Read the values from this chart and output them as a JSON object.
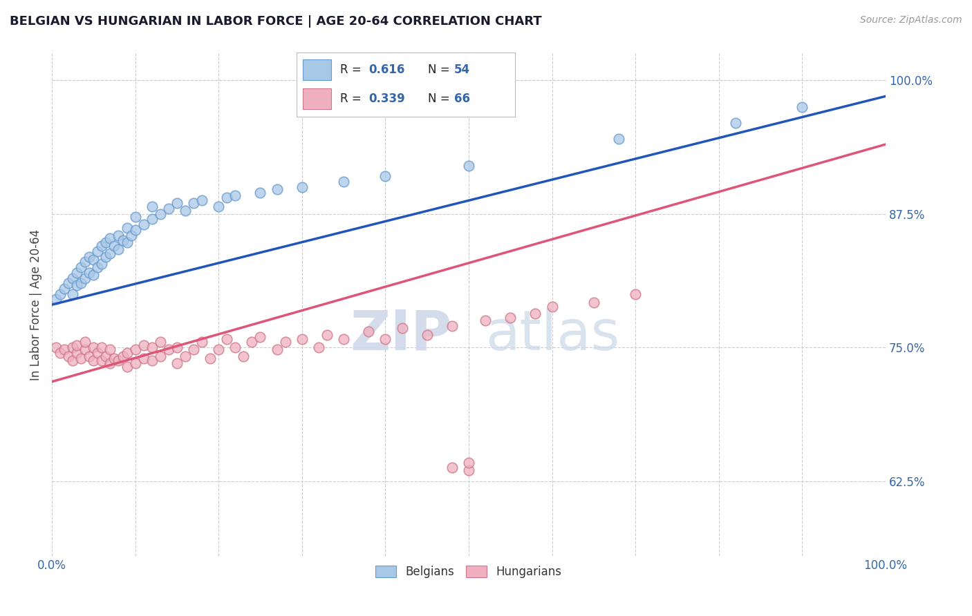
{
  "title": "BELGIAN VS HUNGARIAN IN LABOR FORCE | AGE 20-64 CORRELATION CHART",
  "source_text": "Source: ZipAtlas.com",
  "ylabel": "In Labor Force | Age 20-64",
  "xlim": [
    0.0,
    1.0
  ],
  "ylim": [
    0.555,
    1.025
  ],
  "yticks": [
    0.625,
    0.75,
    0.875,
    1.0
  ],
  "ytick_labels": [
    "62.5%",
    "75.0%",
    "87.5%",
    "100.0%"
  ],
  "belgian_color": "#a8c8e8",
  "hungarian_color": "#f0b0c0",
  "trend_blue": "#2255bb",
  "trend_pink": "#dd5577",
  "belgians_label": "Belgians",
  "hungarians_label": "Hungarians",
  "watermark_zip": "ZIP",
  "watermark_atlas": "atlas",
  "background_color": "#ffffff",
  "grid_color": "#cccccc",
  "title_color": "#1a1a2e",
  "belgian_x": [
    0.005,
    0.01,
    0.015,
    0.02,
    0.025,
    0.025,
    0.03,
    0.03,
    0.035,
    0.035,
    0.04,
    0.04,
    0.045,
    0.045,
    0.05,
    0.05,
    0.055,
    0.055,
    0.06,
    0.06,
    0.065,
    0.065,
    0.07,
    0.07,
    0.075,
    0.08,
    0.08,
    0.085,
    0.09,
    0.09,
    0.095,
    0.1,
    0.1,
    0.11,
    0.12,
    0.12,
    0.13,
    0.14,
    0.15,
    0.16,
    0.17,
    0.18,
    0.2,
    0.21,
    0.22,
    0.25,
    0.27,
    0.3,
    0.35,
    0.4,
    0.5,
    0.68,
    0.82,
    0.9
  ],
  "belgian_y": [
    0.795,
    0.8,
    0.805,
    0.81,
    0.8,
    0.815,
    0.808,
    0.82,
    0.81,
    0.825,
    0.815,
    0.83,
    0.82,
    0.835,
    0.818,
    0.832,
    0.825,
    0.84,
    0.828,
    0.845,
    0.835,
    0.848,
    0.838,
    0.852,
    0.845,
    0.842,
    0.855,
    0.85,
    0.848,
    0.862,
    0.855,
    0.86,
    0.872,
    0.865,
    0.87,
    0.882,
    0.875,
    0.88,
    0.885,
    0.878,
    0.885,
    0.888,
    0.882,
    0.89,
    0.892,
    0.895,
    0.898,
    0.9,
    0.905,
    0.91,
    0.92,
    0.945,
    0.96,
    0.975
  ],
  "hungarian_x": [
    0.005,
    0.01,
    0.015,
    0.02,
    0.025,
    0.025,
    0.03,
    0.03,
    0.035,
    0.04,
    0.04,
    0.045,
    0.05,
    0.05,
    0.055,
    0.06,
    0.06,
    0.065,
    0.07,
    0.07,
    0.075,
    0.08,
    0.085,
    0.09,
    0.09,
    0.1,
    0.1,
    0.11,
    0.11,
    0.12,
    0.12,
    0.13,
    0.13,
    0.14,
    0.15,
    0.15,
    0.16,
    0.17,
    0.18,
    0.19,
    0.2,
    0.21,
    0.22,
    0.23,
    0.24,
    0.25,
    0.27,
    0.28,
    0.3,
    0.32,
    0.33,
    0.35,
    0.38,
    0.4,
    0.42,
    0.45,
    0.48,
    0.5,
    0.52,
    0.55,
    0.58,
    0.6,
    0.65,
    0.7,
    0.48,
    0.5
  ],
  "hungarian_y": [
    0.75,
    0.745,
    0.748,
    0.742,
    0.75,
    0.738,
    0.745,
    0.752,
    0.74,
    0.748,
    0.755,
    0.742,
    0.75,
    0.738,
    0.745,
    0.738,
    0.75,
    0.742,
    0.735,
    0.748,
    0.74,
    0.738,
    0.742,
    0.732,
    0.745,
    0.735,
    0.748,
    0.74,
    0.752,
    0.738,
    0.75,
    0.742,
    0.755,
    0.748,
    0.735,
    0.75,
    0.742,
    0.748,
    0.755,
    0.74,
    0.748,
    0.758,
    0.75,
    0.742,
    0.755,
    0.76,
    0.748,
    0.755,
    0.758,
    0.75,
    0.762,
    0.758,
    0.765,
    0.758,
    0.768,
    0.762,
    0.77,
    0.635,
    0.775,
    0.778,
    0.782,
    0.788,
    0.792,
    0.8,
    0.638,
    0.642
  ],
  "blue_trend_y0": 0.79,
  "blue_trend_y1": 0.985,
  "pink_trend_y0": 0.718,
  "pink_trend_y1": 0.94
}
